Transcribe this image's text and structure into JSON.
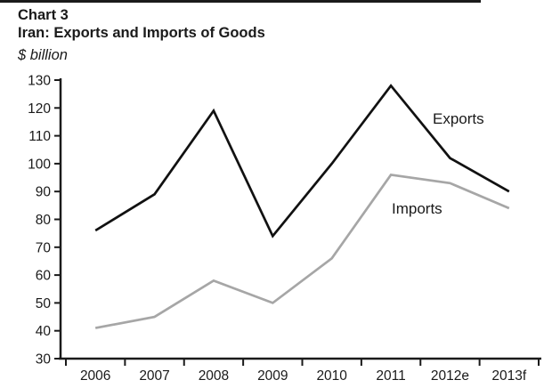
{
  "header": {
    "chart_number": "Chart 3",
    "title": "Iran: Exports and Imports of Goods",
    "units": "$ billion"
  },
  "chart_data": {
    "type": "line",
    "title": "Iran: Exports and Imports of Goods",
    "ylabel": "$ billion",
    "categories": [
      "2006",
      "2007",
      "2008",
      "2009",
      "2010",
      "2011",
      "2012e",
      "2013f"
    ],
    "series": [
      {
        "name": "Exports",
        "color": "#111111",
        "label_color": "#1a1a1a",
        "values": [
          76,
          89,
          119,
          74,
          100,
          128,
          102,
          90
        ]
      },
      {
        "name": "Imports",
        "color": "#a6a6a6",
        "label_color": "#4a4a4a",
        "values": [
          41,
          45,
          58,
          50,
          66,
          96,
          93,
          84
        ]
      }
    ],
    "ylim": [
      30,
      130
    ],
    "ytick_step": 10,
    "grid": false,
    "legend": "inline-labels",
    "axis_color": "#1a1a1a"
  }
}
